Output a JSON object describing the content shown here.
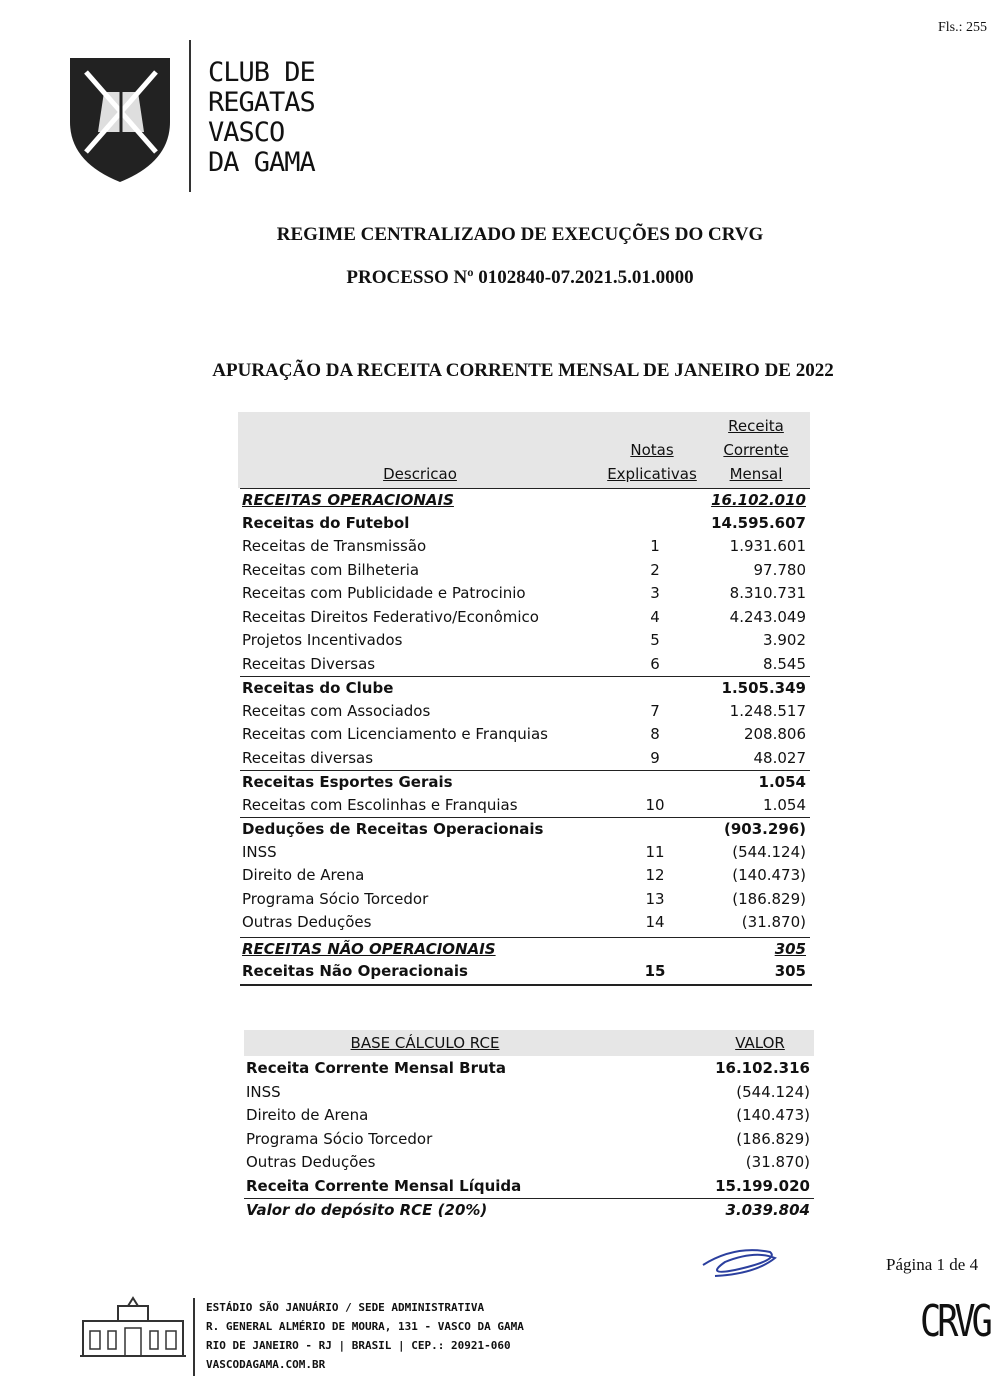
{
  "fls": "Fls.: 255",
  "logo": {
    "lines": [
      "CLUB DE",
      "REGATAS",
      "VASCO",
      "DA GAMA"
    ]
  },
  "header": {
    "title": "REGIME CENTRALIZADO DE EXECUÇÕES DO CRVG",
    "process": "PROCESSO Nº 0102840-07.2021.5.01.0000",
    "subtitle": "APURAÇÃO DA RECEITA CORRENTE MENSAL DE JANEIRO DE 2022"
  },
  "table": {
    "headers": {
      "desc": "Descricao",
      "notes": [
        "Notas",
        "Explicativas"
      ],
      "value": [
        "Receita",
        "Corrente",
        "Mensal"
      ]
    },
    "groups": [
      {
        "label": "RECEITAS OPERACIONAIS",
        "value": "16.102.010",
        "subgroups": [
          {
            "label": "Receitas do Futebol",
            "value": "14.595.607",
            "rows": [
              [
                "Receitas de Transmissão",
                "1",
                "1.931.601"
              ],
              [
                "Receitas com Bilheteria",
                "2",
                "97.780"
              ],
              [
                "Receitas com Publicidade e Patrocinio",
                "3",
                "8.310.731"
              ],
              [
                "Receitas Direitos Federativo/Econômico",
                "4",
                "4.243.049"
              ],
              [
                "Projetos Incentivados",
                "5",
                "3.902"
              ],
              [
                "Receitas Diversas",
                "6",
                "8.545"
              ]
            ]
          },
          {
            "label": "Receitas do Clube",
            "value": "1.505.349",
            "rows": [
              [
                "Receitas com Associados",
                "7",
                "1.248.517"
              ],
              [
                "Receitas com Licenciamento e Franquias",
                "8",
                "208.806"
              ],
              [
                "Receitas diversas",
                "9",
                "48.027"
              ]
            ]
          },
          {
            "label": "Receitas Esportes Gerais",
            "value": "1.054",
            "rows": [
              [
                "Receitas com Escolinhas e Franquias",
                "10",
                "1.054"
              ]
            ]
          },
          {
            "label": "Deduções de Receitas Operacionais",
            "value": "(903.296)",
            "rows": [
              [
                "INSS",
                "11",
                "(544.124)"
              ],
              [
                "Direito de Arena",
                "12",
                "(140.473)"
              ],
              [
                "Programa Sócio Torcedor",
                "13",
                "(186.829)"
              ],
              [
                "Outras Deduções",
                "14",
                "(31.870)"
              ]
            ]
          }
        ]
      },
      {
        "label": "RECEITAS NÃO OPERACIONAIS",
        "value": "305",
        "subgroups": [
          {
            "label": "Receitas Não Operacionais",
            "note": "15",
            "value": "305",
            "rows": []
          }
        ]
      }
    ]
  },
  "base": {
    "headers": [
      "BASE CÁLCULO RCE",
      "VALOR"
    ],
    "gross": [
      "Receita Corrente Mensal Bruta",
      "16.102.316"
    ],
    "deductions": [
      [
        "INSS",
        "(544.124)"
      ],
      [
        "Direito de Arena",
        "(140.473)"
      ],
      [
        "Programa Sócio Torcedor",
        "(186.829)"
      ],
      [
        "Outras Deduções",
        "(31.870)"
      ]
    ],
    "net": [
      "Receita Corrente Mensal Líquida",
      "15.199.020"
    ],
    "deposit": [
      "Valor do depósito RCE (20%)",
      "3.039.804"
    ]
  },
  "footer": {
    "page": "Página 1 de 4",
    "address": [
      "ESTÁDIO SÃO JANUÁRIO / SEDE ADMINISTRATIVA",
      "R. GENERAL ALMÉRIO DE MOURA, 131 - VASCO DA GAMA",
      "RIO DE JANEIRO - RJ | BRASIL | CEP.: 20921-060",
      "VASCODAGAMA.COM.BR"
    ],
    "brand": "CRVG"
  }
}
